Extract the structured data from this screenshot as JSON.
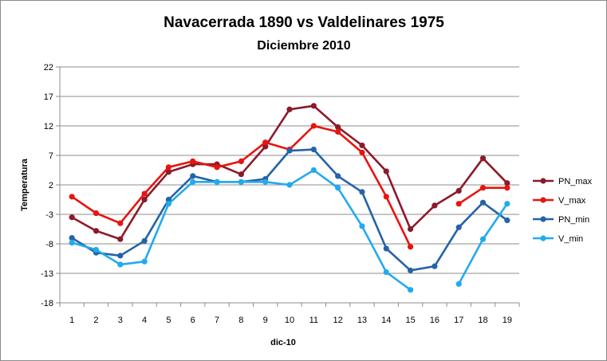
{
  "chart_data": {
    "type": "line",
    "title": "Navacerrada 1890 vs Valdelinares 1975",
    "subtitle": "Diciembre 2010",
    "xlabel": "dic-10",
    "ylabel": "Temperatura",
    "ylim": [
      -18,
      22
    ],
    "yticks": [
      -18,
      -13,
      -8,
      -3,
      2,
      7,
      12,
      17,
      22
    ],
    "grid": true,
    "legend": "right",
    "x": [
      1,
      2,
      3,
      4,
      5,
      6,
      7,
      8,
      9,
      10,
      11,
      12,
      13,
      14,
      15,
      16,
      17,
      18,
      19
    ],
    "series": [
      {
        "name": "PN_max",
        "color": "#8b1a2b",
        "values": [
          -3.5,
          -5.8,
          -7.2,
          -0.5,
          4.2,
          5.5,
          5.5,
          3.8,
          8.5,
          14.8,
          15.4,
          11.8,
          8.7,
          4.3,
          -5.5,
          -1.5,
          1.0,
          6.5,
          2.3
        ]
      },
      {
        "name": "V_max",
        "color": "#e8140f",
        "values": [
          0.0,
          -2.8,
          -4.5,
          0.5,
          5.0,
          6.0,
          5.0,
          6.0,
          9.2,
          8.0,
          12.0,
          11.0,
          7.5,
          0.0,
          -8.5,
          null,
          -1.2,
          1.5,
          1.5
        ]
      },
      {
        "name": "PN_min",
        "color": "#2463a8",
        "values": [
          -7.0,
          -9.5,
          -10.0,
          -7.5,
          -0.5,
          3.5,
          2.5,
          2.5,
          3.0,
          7.8,
          8.0,
          3.5,
          0.8,
          -8.8,
          -12.5,
          -11.8,
          -5.2,
          -1.0,
          -4.0
        ]
      },
      {
        "name": "V_min",
        "color": "#22aaee",
        "values": [
          -7.8,
          -9.0,
          -11.5,
          -11.0,
          -1.2,
          2.5,
          2.5,
          2.5,
          2.5,
          2.0,
          4.5,
          1.5,
          -5.0,
          -12.8,
          -15.8,
          null,
          -14.8,
          -7.2,
          -1.2
        ]
      }
    ]
  }
}
